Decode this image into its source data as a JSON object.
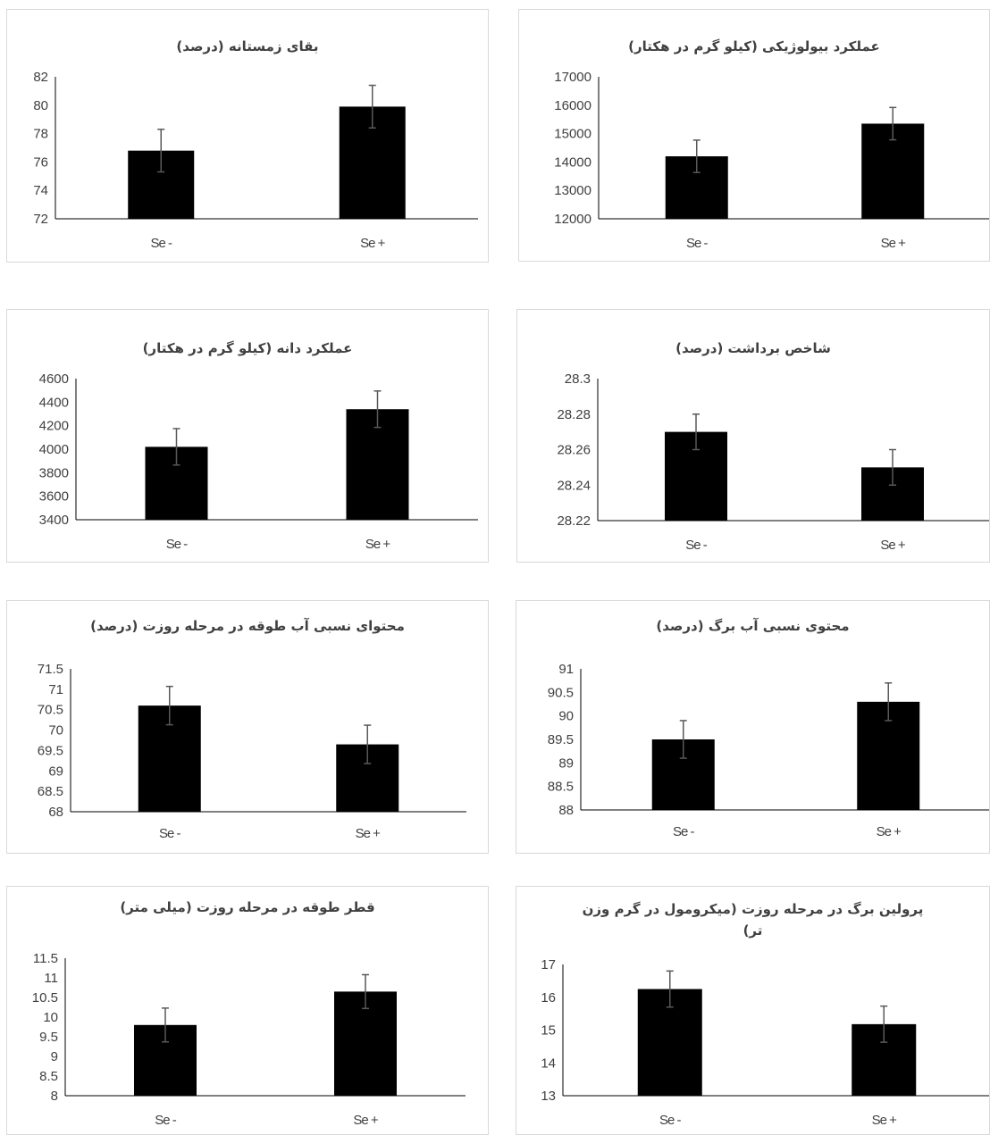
{
  "chart_data": [
    {
      "type": "bar",
      "title": "عملکرد بیولوژیکی (کیلو گرم در هکتار)",
      "categories": [
        "Se -",
        "Se +"
      ],
      "values": [
        14200,
        15350
      ],
      "errors": [
        570,
        570
      ],
      "ylim": [
        12000,
        17000
      ],
      "yticks": [
        "12000",
        "13000",
        "14000",
        "15000",
        "16000",
        "17000"
      ],
      "bar_color": "#000000",
      "error_color": "#595959"
    },
    {
      "type": "bar",
      "title": "بقای زمستانه (درصد)",
      "categories": [
        "Se -",
        "Se +"
      ],
      "values": [
        76.8,
        79.9
      ],
      "errors": [
        1.5,
        1.5
      ],
      "ylim": [
        72,
        82
      ],
      "yticks": [
        "72",
        "74",
        "76",
        "78",
        "80",
        "82"
      ],
      "bar_color": "#000000",
      "error_color": "#595959"
    },
    {
      "type": "bar",
      "title": "شاخص برداشت (درصد)",
      "categories": [
        "Se -",
        "Se +"
      ],
      "values": [
        28.27,
        28.25
      ],
      "errors": [
        0.01,
        0.01
      ],
      "ylim": [
        28.22,
        28.3
      ],
      "yticks": [
        "28.22",
        "28.24",
        "28.26",
        "28.28",
        "28.3"
      ],
      "bar_color": "#000000",
      "error_color": "#595959"
    },
    {
      "type": "bar",
      "title": "عملکرد دانه (کیلو گرم در هکتار)",
      "categories": [
        "Se -",
        "Se +"
      ],
      "values": [
        4020,
        4340
      ],
      "errors": [
        155,
        155
      ],
      "ylim": [
        3400,
        4600
      ],
      "yticks": [
        "3400",
        "3600",
        "3800",
        "4000",
        "4200",
        "4400",
        "4600"
      ],
      "bar_color": "#000000",
      "error_color": "#595959"
    },
    {
      "type": "bar",
      "title": "محتوی نسبی آب برگ (درصد)",
      "categories": [
        "Se -",
        "Se +"
      ],
      "values": [
        89.5,
        90.3
      ],
      "errors": [
        0.4,
        0.4
      ],
      "ylim": [
        88,
        91
      ],
      "yticks": [
        "88",
        "88.5",
        "89",
        "89.5",
        "90",
        "90.5",
        "91"
      ],
      "bar_color": "#000000",
      "error_color": "#595959"
    },
    {
      "type": "bar",
      "title": "محتوای نسبی آب طوقه در مرحله روزت (درصد)",
      "categories": [
        "Se -",
        "Se +"
      ],
      "values": [
        70.6,
        69.65
      ],
      "errors": [
        0.47,
        0.47
      ],
      "ylim": [
        68,
        71.5
      ],
      "yticks": [
        "68",
        "68.5",
        "69",
        "69.5",
        "70",
        "70.5",
        "71",
        "71.5"
      ],
      "bar_color": "#000000",
      "error_color": "#595959"
    },
    {
      "type": "bar",
      "title": "پرولین برگ در مرحله روزت (میکرومول در گرم وزن تر)",
      "title_lines": [
        "پرولین برگ در مرحله روزت (میکرومول در گرم وزن",
        "تر)"
      ],
      "categories": [
        "Se -",
        "Se +"
      ],
      "values": [
        16.25,
        15.18
      ],
      "errors": [
        0.55,
        0.55
      ],
      "ylim": [
        13,
        17
      ],
      "yticks": [
        "13",
        "14",
        "15",
        "16",
        "17"
      ],
      "bar_color": "#000000",
      "error_color": "#595959"
    },
    {
      "type": "bar",
      "title": "قطر طوقه در مرحله روزت (میلی متر)",
      "categories": [
        "Se -",
        "Se +"
      ],
      "values": [
        9.8,
        10.65
      ],
      "errors": [
        0.43,
        0.43
      ],
      "ylim": [
        8,
        11.5
      ],
      "yticks": [
        "8",
        "8.5",
        "9",
        "9.5",
        "10",
        "10.5",
        "11",
        "11.5"
      ],
      "bar_color": "#000000",
      "error_color": "#595959"
    }
  ]
}
